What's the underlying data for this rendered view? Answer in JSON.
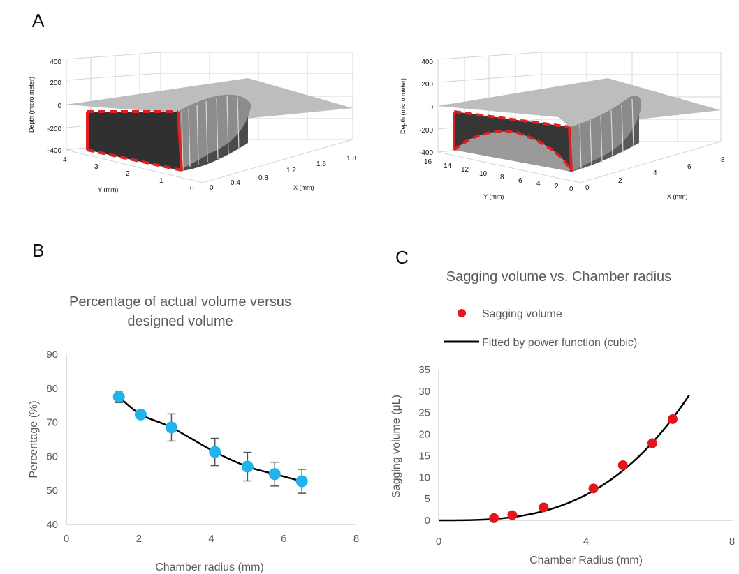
{
  "panels": {
    "a": {
      "letter": "A",
      "left": {
        "zlabel": "Depth (micro meter)",
        "xlabel": "X (mm)",
        "ylabel": "Y (mm)",
        "zticks": [
          "400",
          "200",
          "0",
          "-200",
          "-400"
        ],
        "xticks": [
          "0",
          "0.4",
          "0.8",
          "1.2",
          "1.6",
          "1.8"
        ],
        "yticks": [
          "4",
          "3",
          "2",
          "1",
          "0"
        ]
      },
      "right": {
        "zlabel": "Depth (micro meter)",
        "xlabel": "X (mm)",
        "ylabel": "Y (mm)",
        "zticks": [
          "400",
          "200",
          "0",
          "-200",
          "-400"
        ],
        "xticks": [
          "0",
          "2",
          "4",
          "6",
          "8"
        ],
        "yticks": [
          "16",
          "14",
          "12",
          "10",
          "8",
          "6",
          "4",
          "2",
          "0"
        ]
      },
      "colors": {
        "surface": "#b9b9b9",
        "cavity": "#3a3a3a",
        "outline": "#e02020"
      }
    },
    "b": {
      "letter": "B"
    },
    "c": {
      "letter": "C"
    }
  },
  "chart_data": [
    {
      "type": "line",
      "title": "Percentage of actual volume versus designed volume",
      "title_lines": [
        "Percentage of actual volume versus",
        "designed volume"
      ],
      "xlabel": "Chamber radius (mm)",
      "ylabel": "Percentage (%)",
      "xlim": [
        0,
        8
      ],
      "ylim": [
        40,
        90
      ],
      "xticks": [
        0,
        2,
        4,
        6,
        8
      ],
      "yticks": [
        40,
        50,
        60,
        70,
        80,
        90
      ],
      "grid": false,
      "series": [
        {
          "x": [
            1.45,
            2.05,
            2.9,
            4.1,
            5.0,
            5.75,
            6.5
          ],
          "y": [
            77.5,
            72.3,
            68.5,
            61.3,
            57.0,
            54.8,
            52.7
          ],
          "error": [
            1.7,
            0.8,
            4.0,
            4.0,
            4.2,
            3.5,
            3.5
          ],
          "marker_color": "#21b3ec",
          "line_color": "#000000"
        }
      ]
    },
    {
      "type": "scatter",
      "title": "Sagging volume vs. Chamber radius",
      "xlabel": "Chamber Radius (mm)",
      "ylabel": "Sagging volume (μL)",
      "xlim": [
        0,
        8
      ],
      "ylim": [
        0,
        35
      ],
      "xticks": [
        0,
        4,
        8
      ],
      "yticks": [
        0,
        5,
        10,
        15,
        20,
        25,
        30,
        35
      ],
      "grid": false,
      "legend_position": "top",
      "series": [
        {
          "name": "Sagging volume",
          "type": "scatter",
          "x": [
            1.5,
            2.0,
            2.85,
            4.2,
            5.0,
            5.8,
            6.35
          ],
          "y": [
            0.5,
            1.2,
            3.0,
            7.4,
            12.8,
            17.9,
            23.5
          ],
          "color": "#e8141c"
        },
        {
          "name": "Fitted by power function (cubic)",
          "type": "line",
          "fit": "cubic",
          "coefficient": 0.0925,
          "x_range": [
            0,
            6.8
          ],
          "color": "#000000"
        }
      ]
    }
  ]
}
